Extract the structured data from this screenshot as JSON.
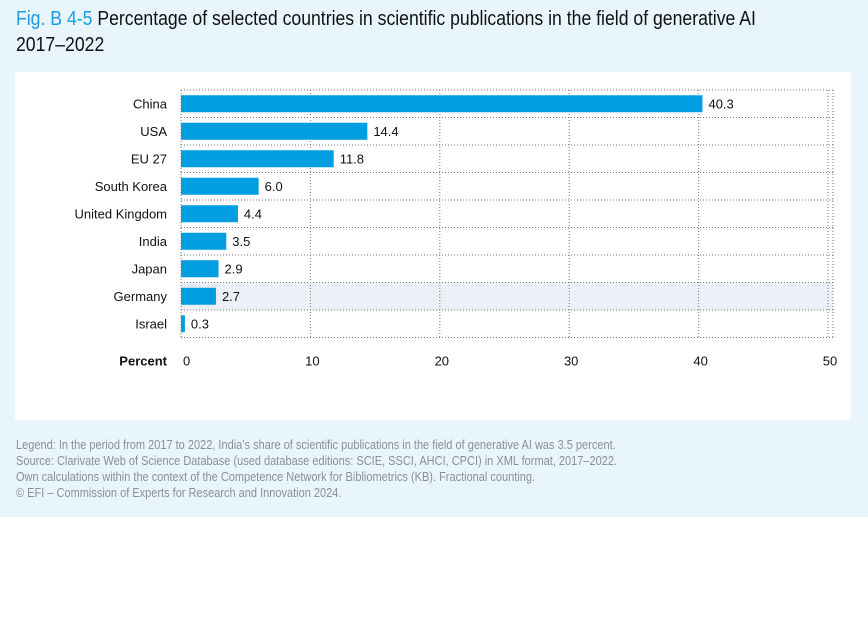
{
  "title": {
    "fig": "Fig. B 4-5",
    "text": "Percentage of selected countries in scientific publications in the field of generative AI 2017–2022"
  },
  "chart_data": {
    "type": "bar",
    "orientation": "horizontal",
    "categories": [
      "China",
      "USA",
      "EU 27",
      "South Korea",
      "United Kingdom",
      "India",
      "Japan",
      "Germany",
      "Israel"
    ],
    "values": [
      40.3,
      14.4,
      11.8,
      6.0,
      4.4,
      3.5,
      2.9,
      2.7,
      0.3
    ],
    "value_labels": [
      "40.3",
      "14.4",
      "11.8",
      "6.0",
      "4.4",
      "3.5",
      "2.9",
      "2.7",
      "0.3"
    ],
    "xlabel": "Percent",
    "xlim": [
      0,
      50
    ],
    "xticks": [
      "0",
      "10",
      "20",
      "30",
      "40",
      "50"
    ],
    "highlight": "Germany",
    "grid": true,
    "colors": {
      "bar": "#009de0",
      "highlight_bg": "#eaf0f5"
    }
  },
  "notes": [
    "Legend: In the period from 2017 to 2022, India’s share of scientific publications in the field of generative AI was 3.5 percent.",
    "Source: Clarivate Web of Science Database (used database editions: SCIE, SSCI, AHCI, CPCI) in XML format, 2017–2022.",
    "Own calculations within the context of the Competence Network for Bibliometrics (KB). Fractional counting.",
    "© EFI – Commission of Experts for Research and Innovation 2024."
  ]
}
